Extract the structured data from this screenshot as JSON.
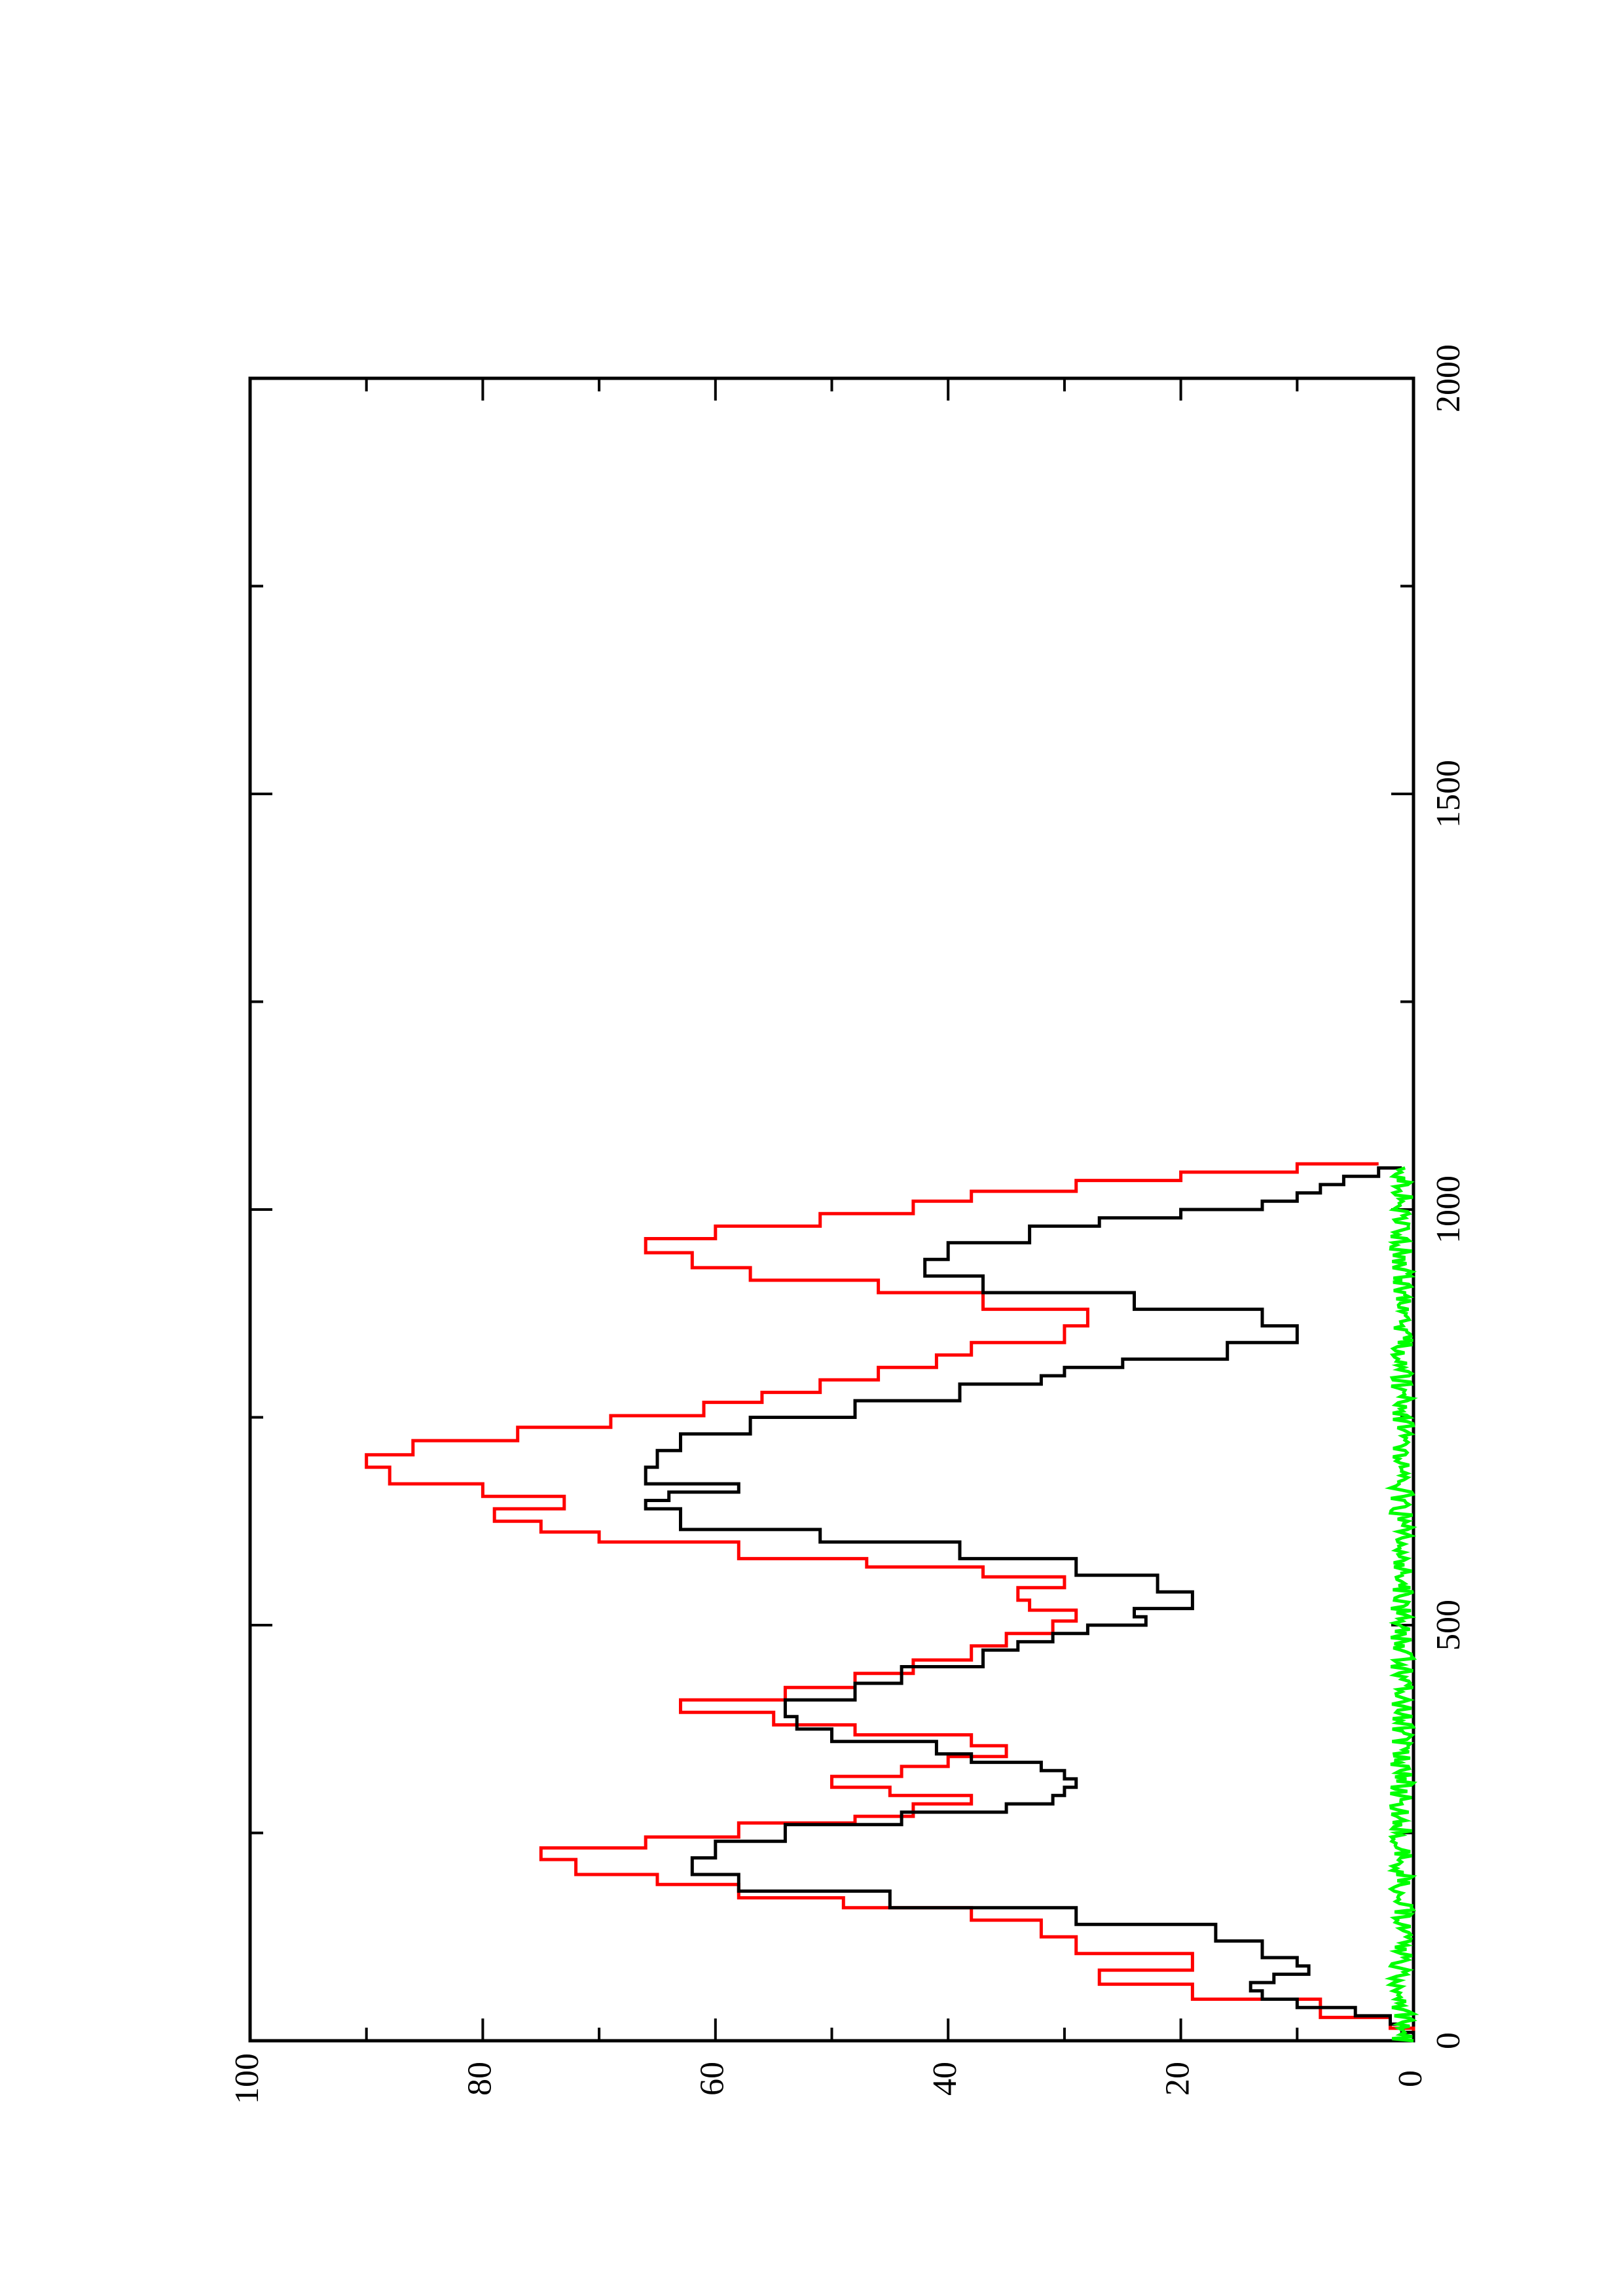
{
  "chart_data": {
    "type": "line",
    "orientation": "rotated-90-ccw",
    "title": "",
    "xlabel": "",
    "ylabel": "",
    "xlim": [
      0,
      2000
    ],
    "ylim": [
      0,
      100
    ],
    "x_ticks": [
      "0",
      "500",
      "1000",
      "1500",
      "2000"
    ],
    "y_ticks": [
      "0",
      "20",
      "40",
      "60",
      "80",
      "100"
    ],
    "grid": false,
    "legend": "none",
    "series": [
      {
        "color": "#ff0000",
        "x": [
          0,
          15,
          28,
          50,
          68,
          85,
          105,
          125,
          145,
          160,
          172,
          188,
          200,
          218,
          232,
          245,
          262,
          270,
          285,
          295,
          305,
          318,
          330,
          342,
          355,
          368,
          380,
          395,
          410,
          425,
          442,
          458,
          475,
          490,
          505,
          518,
          530,
          545,
          558,
          570,
          580,
          600,
          612,
          625,
          640,
          655,
          670,
          690,
          705,
          722,
          738,
          752,
          768,
          780,
          795,
          810,
          825,
          840,
          860,
          880,
          900,
          915,
          930,
          948,
          965,
          980,
          995,
          1010,
          1022,
          1035,
          1045,
          1055
        ],
        "y": [
          0,
          2,
          8,
          19,
          27,
          19,
          29,
          32,
          38,
          49,
          58,
          65,
          72,
          75,
          66,
          58,
          48,
          43,
          38,
          45,
          50,
          44,
          40,
          35,
          38,
          48,
          55,
          63,
          54,
          48,
          43,
          38,
          35,
          31,
          29,
          33,
          34,
          30,
          37,
          47,
          58,
          70,
          75,
          79,
          73,
          80,
          88,
          90,
          86,
          77,
          69,
          61,
          56,
          51,
          46,
          41,
          38,
          30,
          28,
          37,
          46,
          57,
          62,
          66,
          60,
          51,
          43,
          38,
          29,
          20,
          10,
          3
        ]
      },
      {
        "color": "#000000",
        "x": [
          0,
          10,
          20,
          30,
          40,
          50,
          60,
          70,
          80,
          90,
          100,
          120,
          140,
          160,
          180,
          200,
          220,
          240,
          260,
          275,
          285,
          295,
          305,
          315,
          325,
          335,
          345,
          360,
          375,
          390,
          410,
          430,
          450,
          470,
          480,
          490,
          500,
          510,
          520,
          540,
          560,
          580,
          600,
          615,
          630,
          640,
          650,
          660,
          670,
          690,
          710,
          730,
          750,
          770,
          790,
          800,
          810,
          820,
          840,
          860,
          880,
          900,
          920,
          940,
          960,
          980,
          990,
          1000,
          1010,
          1020,
          1030,
          1040,
          1050
        ],
        "y": [
          0,
          1,
          2,
          5,
          10,
          13,
          14,
          12,
          9,
          10,
          13,
          17,
          29,
          45,
          58,
          62,
          60,
          54,
          44,
          35,
          31,
          30,
          29,
          30,
          32,
          38,
          41,
          50,
          53,
          54,
          48,
          44,
          37,
          34,
          31,
          28,
          23,
          24,
          19,
          22,
          29,
          39,
          51,
          63,
          63,
          66,
          64,
          58,
          66,
          65,
          63,
          57,
          48,
          39,
          32,
          30,
          25,
          16,
          10,
          13,
          24,
          37,
          42,
          40,
          33,
          27,
          20,
          13,
          10,
          8,
          6,
          3,
          1
        ]
      },
      {
        "color": "#00ff00",
        "x": [
          0,
          1050
        ],
        "y_range": [
          0,
          2
        ]
      }
    ]
  }
}
